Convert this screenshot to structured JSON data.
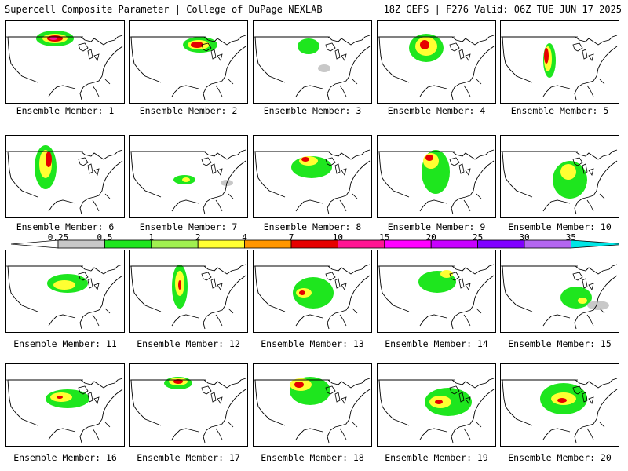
{
  "header": {
    "title": "Supercell Composite Parameter | College of DuPage NEXLAB",
    "run_info": "18Z GEFS | F276 Valid: 06Z TUE JUN 17 2025"
  },
  "colorbar": {
    "labels": [
      "0.25",
      "0.5",
      "1",
      "2",
      "4",
      "7",
      "10",
      "15",
      "20",
      "25",
      "30",
      "35"
    ],
    "colors": [
      "#c8c8c8",
      "#1ee61e",
      "#a0f050",
      "#ffff32",
      "#ff9600",
      "#e60000",
      "#ff1493",
      "#ff00ff",
      "#c800ff",
      "#8000ff",
      "#b466f0",
      "#00e6e6"
    ]
  },
  "members": [
    {
      "label": "Ensemble Member: 1"
    },
    {
      "label": "Ensemble Member: 2"
    },
    {
      "label": "Ensemble Member: 3"
    },
    {
      "label": "Ensemble Member: 4"
    },
    {
      "label": "Ensemble Member: 5"
    },
    {
      "label": "Ensemble Member: 6"
    },
    {
      "label": "Ensemble Member: 7"
    },
    {
      "label": "Ensemble Member: 8"
    },
    {
      "label": "Ensemble Member: 9"
    },
    {
      "label": "Ensemble Member: 10"
    },
    {
      "label": "Ensemble Member: 11"
    },
    {
      "label": "Ensemble Member: 12"
    },
    {
      "label": "Ensemble Member: 13"
    },
    {
      "label": "Ensemble Member: 14"
    },
    {
      "label": "Ensemble Member: 15"
    },
    {
      "label": "Ensemble Member: 16"
    },
    {
      "label": "Ensemble Member: 17"
    },
    {
      "label": "Ensemble Member: 18"
    },
    {
      "label": "Ensemble Member: 19"
    },
    {
      "label": "Ensemble Member: 20"
    }
  ]
}
